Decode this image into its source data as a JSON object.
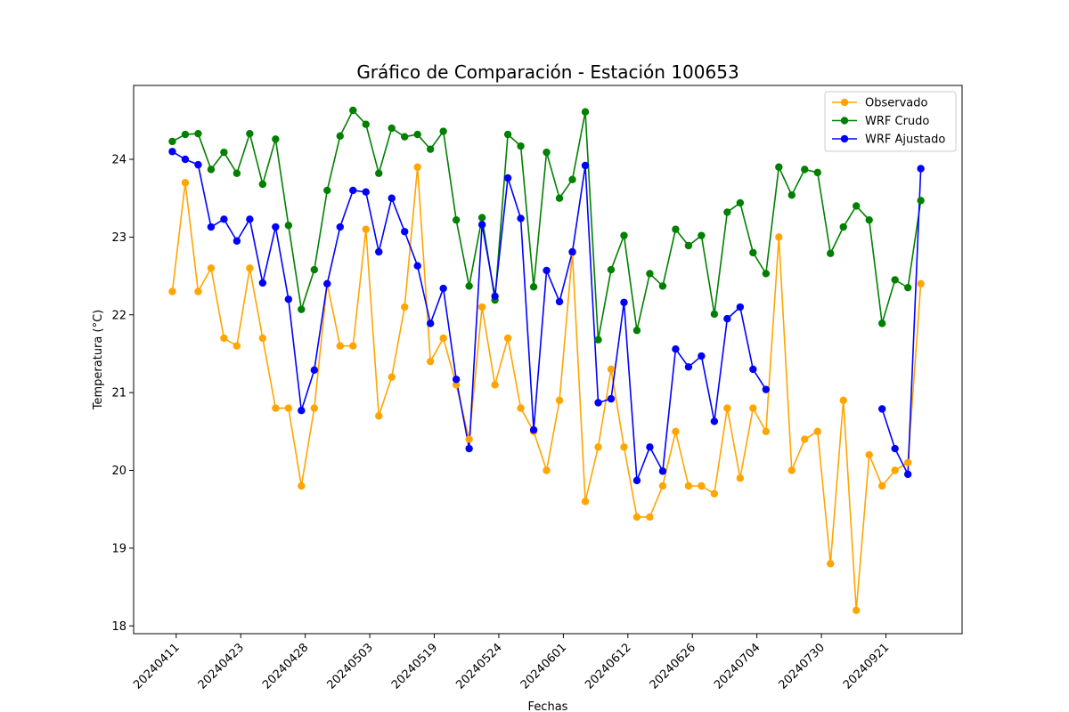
{
  "chart_data": {
    "type": "line",
    "title": "Gráfico de Comparación - Estación 100653",
    "xlabel": "Fechas",
    "ylabel": "Temperatura (°C)",
    "ylim": [
      17.9,
      24.95
    ],
    "yticks": [
      18,
      19,
      20,
      21,
      22,
      23,
      24
    ],
    "grid": false,
    "legend_position": "top-right",
    "x_tick_labels": [
      "20240411",
      "20240423",
      "20240428",
      "20240503",
      "20240519",
      "20240524",
      "20240601",
      "20240612",
      "20240626",
      "20240704",
      "20240730",
      "20240921"
    ],
    "x_tick_indices": [
      0.3,
      5.3,
      10.3,
      15.3,
      20.3,
      25.3,
      30.3,
      35.3,
      40.3,
      45.3,
      50.3,
      55.3
    ],
    "xlim": [
      -3,
      61.2
    ],
    "series": [
      {
        "name": "Observado",
        "color": "#ffa500",
        "values": [
          22.3,
          23.7,
          22.3,
          22.6,
          21.7,
          21.6,
          22.6,
          21.7,
          20.8,
          20.8,
          19.8,
          20.8,
          22.4,
          21.6,
          21.6,
          23.1,
          20.7,
          21.2,
          22.1,
          23.9,
          21.4,
          21.7,
          21.1,
          20.4,
          22.1,
          21.1,
          21.7,
          20.8,
          20.5,
          20.0,
          20.9,
          22.8,
          19.6,
          20.3,
          21.3,
          20.3,
          19.4,
          19.4,
          19.8,
          20.5,
          19.8,
          19.8,
          19.7,
          20.8,
          19.9,
          20.8,
          20.5,
          23.0,
          20.0,
          20.4,
          20.5,
          18.8,
          20.9,
          18.2,
          20.2,
          19.8,
          20.0,
          20.1,
          22.4
        ]
      },
      {
        "name": "WRF Crudo",
        "color": "#008000",
        "values": [
          24.23,
          24.32,
          24.33,
          23.87,
          24.09,
          23.82,
          24.33,
          23.68,
          24.26,
          23.15,
          22.07,
          22.58,
          23.6,
          24.3,
          24.63,
          24.45,
          23.82,
          24.4,
          24.29,
          24.32,
          24.13,
          24.36,
          23.22,
          22.37,
          23.25,
          22.19,
          24.32,
          24.17,
          22.36,
          24.09,
          23.5,
          23.74,
          24.61,
          21.68,
          22.58,
          23.02,
          21.8,
          22.53,
          22.37,
          23.1,
          22.89,
          23.02,
          22.01,
          23.32,
          23.44,
          22.8,
          22.53,
          23.9,
          23.54,
          23.87,
          23.83,
          22.79,
          23.13,
          23.4,
          23.22,
          21.89,
          22.45,
          22.35,
          23.47
        ]
      },
      {
        "name": "WRF Ajustado",
        "color": "#0000ff",
        "values": [
          24.1,
          24.0,
          23.93,
          23.13,
          23.23,
          22.95,
          23.23,
          22.41,
          23.13,
          22.2,
          20.77,
          21.29,
          22.4,
          23.13,
          23.6,
          23.58,
          22.81,
          23.5,
          23.07,
          22.63,
          21.89,
          22.34,
          21.17,
          20.28,
          23.16,
          22.24,
          23.76,
          23.24,
          20.52,
          22.57,
          22.17,
          22.81,
          23.92,
          20.87,
          20.92,
          22.16,
          19.87,
          20.3,
          19.99,
          21.56,
          21.33,
          21.47,
          20.63,
          21.95,
          22.1,
          21.3,
          21.04,
          null,
          null,
          null,
          null,
          null,
          null,
          null,
          null,
          20.79,
          20.28,
          19.95,
          23.88
        ]
      }
    ]
  }
}
